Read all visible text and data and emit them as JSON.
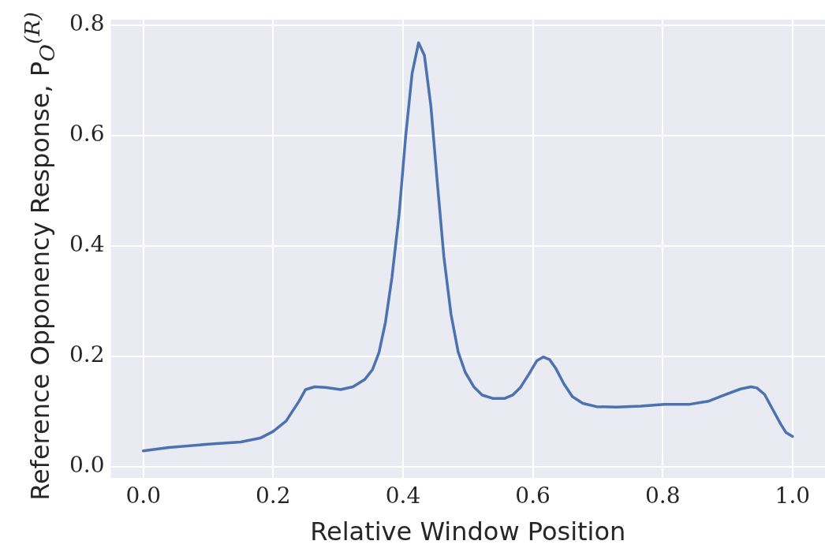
{
  "chart_data": {
    "type": "line",
    "xlabel": "Relative Window Position",
    "ylabel": "Reference Opponency Response, P$_{O}$$^{(R)}$",
    "x": [
      0,
      0.039,
      0.1,
      0.15,
      0.18,
      0.2,
      0.22,
      0.24,
      0.25,
      0.264,
      0.28,
      0.304,
      0.323,
      0.341,
      0.353,
      0.363,
      0.373,
      0.383,
      0.394,
      0.404,
      0.414,
      0.424,
      0.433,
      0.443,
      0.453,
      0.463,
      0.474,
      0.485,
      0.496,
      0.509,
      0.522,
      0.538,
      0.557,
      0.569,
      0.581,
      0.594,
      0.606,
      0.616,
      0.626,
      0.635,
      0.648,
      0.661,
      0.677,
      0.698,
      0.729,
      0.766,
      0.803,
      0.84,
      0.871,
      0.895,
      0.92,
      0.936,
      0.945,
      0.957,
      0.969,
      0.982,
      0.99,
      1.0
    ],
    "series": [
      {
        "color": "#4c72b0",
        "values": [
          0.029,
          0.035,
          0.041,
          0.045,
          0.052,
          0.064,
          0.083,
          0.119,
          0.14,
          0.145,
          0.144,
          0.14,
          0.145,
          0.158,
          0.176,
          0.207,
          0.262,
          0.343,
          0.457,
          0.597,
          0.712,
          0.768,
          0.745,
          0.653,
          0.513,
          0.38,
          0.276,
          0.208,
          0.171,
          0.145,
          0.13,
          0.124,
          0.124,
          0.13,
          0.144,
          0.168,
          0.192,
          0.199,
          0.194,
          0.179,
          0.15,
          0.127,
          0.115,
          0.109,
          0.108,
          0.11,
          0.113,
          0.113,
          0.119,
          0.13,
          0.141,
          0.145,
          0.143,
          0.131,
          0.105,
          0.077,
          0.062,
          0.055
        ]
      }
    ],
    "xlim": [
      -0.05,
      1.05
    ],
    "ylim": [
      -0.02,
      0.81
    ],
    "xticks": [
      {
        "value": 0,
        "label": "0.0"
      },
      {
        "value": 0.2,
        "label": "0.2"
      },
      {
        "value": 0.4,
        "label": "0.4"
      },
      {
        "value": 0.6,
        "label": "0.6"
      },
      {
        "value": 0.8,
        "label": "0.8"
      },
      {
        "value": 1,
        "label": "1.0"
      }
    ],
    "yticks": [
      {
        "value": 0,
        "label": "0.0"
      },
      {
        "value": 0.2,
        "label": "0.2"
      },
      {
        "value": 0.4,
        "label": "0.4"
      },
      {
        "value": 0.6,
        "label": "0.6"
      },
      {
        "value": 0.8,
        "label": "0.8"
      }
    ],
    "grid": true,
    "legend": false,
    "marker": "none",
    "line_style": "solid"
  }
}
